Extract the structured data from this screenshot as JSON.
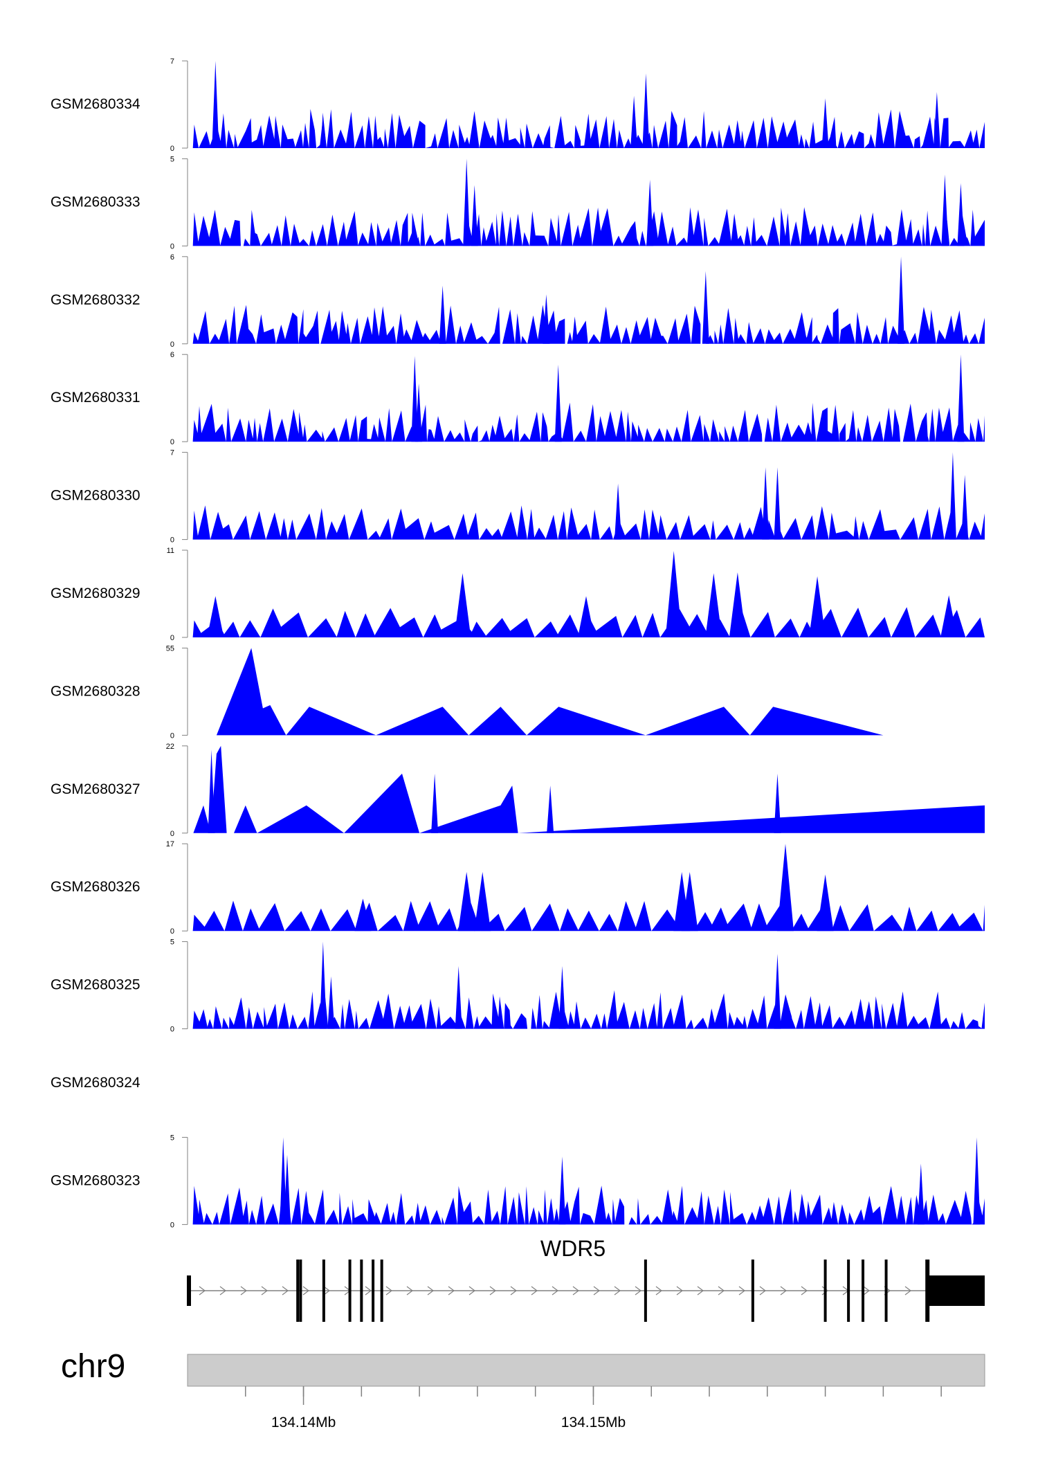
{
  "chart_data": {
    "type": "area",
    "title": "",
    "chromosome": "chr9",
    "gene": {
      "name": "WDR5",
      "strand": "+",
      "exon_positions": [
        134135900,
        134139800,
        134139900,
        134140700,
        134141600,
        134142000,
        134142400,
        134142700,
        134151800,
        134155500,
        134158000,
        134158800,
        134159300,
        134160100,
        134161500
      ],
      "utr_3prime": [
        134161500,
        134163500
      ]
    },
    "x_range": [
      134136000,
      134163500
    ],
    "x_axis": {
      "tick_labels": [
        "134.14Mb",
        "134.15Mb"
      ],
      "tick_label_values": [
        134140000,
        134150000
      ],
      "minor_tick_values": [
        134138000,
        134140000,
        134142000,
        134144000,
        134146000,
        134148000,
        134150000,
        134152000,
        134154000,
        134156000,
        134158000,
        134160000,
        134162000
      ]
    },
    "fill_color": "#0000ff",
    "tracks": [
      {
        "label": "GSM2680334",
        "ylim": [
          0,
          7
        ],
        "tick_labels": [
          "0",
          "7"
        ],
        "style": "dense",
        "seed": 334,
        "peaks": [
          [
            0.035,
            7
          ],
          [
            0.17,
            2.5
          ],
          [
            0.56,
            4.2
          ],
          [
            0.575,
            6.0
          ],
          [
            0.8,
            4.0
          ],
          [
            0.94,
            4.5
          ]
        ]
      },
      {
        "label": "GSM2680333",
        "ylim": [
          0,
          5
        ],
        "tick_labels": [
          "0",
          "5"
        ],
        "style": "dense",
        "seed": 333,
        "peaks": [
          [
            0.35,
            5
          ],
          [
            0.36,
            3.5
          ],
          [
            0.58,
            3.8
          ],
          [
            0.95,
            4.1
          ],
          [
            0.97,
            3.6
          ]
        ]
      },
      {
        "label": "GSM2680332",
        "ylim": [
          0,
          6
        ],
        "tick_labels": [
          "0",
          "6"
        ],
        "style": "dense",
        "seed": 332,
        "peaks": [
          [
            0.32,
            4.0
          ],
          [
            0.45,
            3.4
          ],
          [
            0.65,
            5.0
          ],
          [
            0.895,
            6.0
          ]
        ]
      },
      {
        "label": "GSM2680331",
        "ylim": [
          0,
          6
        ],
        "tick_labels": [
          "0",
          "6"
        ],
        "style": "dense",
        "seed": 331,
        "peaks": [
          [
            0.285,
            5.9
          ],
          [
            0.29,
            4.0
          ],
          [
            0.465,
            5.3
          ],
          [
            0.97,
            6.0
          ]
        ]
      },
      {
        "label": "GSM2680330",
        "ylim": [
          0,
          7
        ],
        "tick_labels": [
          "0",
          "7"
        ],
        "style": "medium",
        "seed": 330,
        "peaks": [
          [
            0.54,
            4.5
          ],
          [
            0.725,
            5.8
          ],
          [
            0.74,
            5.8
          ],
          [
            0.96,
            7.0
          ],
          [
            0.975,
            5.2
          ]
        ]
      },
      {
        "label": "GSM2680329",
        "ylim": [
          0,
          11
        ],
        "tick_labels": [
          "0",
          "11"
        ],
        "style": "sparse",
        "seed": 329,
        "peaks": [
          [
            0.035,
            5.2
          ],
          [
            0.345,
            8.1
          ],
          [
            0.5,
            5.2
          ],
          [
            0.61,
            10.9
          ],
          [
            0.66,
            8.1
          ],
          [
            0.69,
            8.2
          ],
          [
            0.79,
            7.7
          ],
          [
            0.955,
            5.3
          ]
        ]
      },
      {
        "label": "GSM2680328",
        "ylim": [
          0,
          55
        ],
        "tick_labels": [
          "0",
          "55"
        ],
        "style": "points",
        "points": [
          [
            134137000,
            0
          ],
          [
            134138200,
            55
          ],
          [
            134138600,
            17
          ],
          [
            134138850,
            19
          ],
          [
            134139400,
            0
          ],
          [
            134140200,
            18
          ],
          [
            134142500,
            0
          ],
          [
            134144800,
            18
          ],
          [
            134145700,
            0
          ],
          [
            134146800,
            18
          ],
          [
            134147700,
            0
          ],
          [
            134148800,
            18
          ],
          [
            134151800,
            0
          ],
          [
            134154500,
            18
          ],
          [
            134155400,
            0
          ],
          [
            134156200,
            18
          ],
          [
            134160000,
            0
          ]
        ]
      },
      {
        "label": "GSM2680327",
        "ylim": [
          0,
          22
        ],
        "tick_labels": [
          "0",
          "22"
        ],
        "style": "points",
        "points": [
          [
            134136200,
            0
          ],
          [
            134136550,
            7
          ],
          [
            134136800,
            0
          ],
          [
            134137000,
            20
          ],
          [
            134137150,
            22
          ],
          [
            134137350,
            0
          ],
          [
            134137600,
            0
          ],
          [
            134138000,
            7
          ],
          [
            134138400,
            0
          ],
          [
            134140100,
            7
          ],
          [
            134141400,
            0
          ],
          [
            134143400,
            15
          ],
          [
            134144000,
            0
          ],
          [
            134146800,
            7
          ],
          [
            134147200,
            12
          ],
          [
            134147400,
            0
          ],
          [
            134163500,
            7
          ]
        ],
        "spikes": [
          [
            0.03,
            21
          ],
          [
            0.31,
            15
          ],
          [
            0.455,
            12
          ],
          [
            0.74,
            15
          ]
        ]
      },
      {
        "label": "GSM2680326",
        "ylim": [
          0,
          17
        ],
        "tick_labels": [
          "0",
          "17"
        ],
        "style": "sparse",
        "seed": 326,
        "peaks": [
          [
            0.22,
            6.3
          ],
          [
            0.35,
            11.5
          ],
          [
            0.37,
            11.5
          ],
          [
            0.62,
            11.5
          ],
          [
            0.63,
            11.5
          ],
          [
            0.75,
            17.0
          ],
          [
            0.8,
            11.0
          ]
        ]
      },
      {
        "label": "GSM2680325",
        "ylim": [
          0,
          5
        ],
        "tick_labels": [
          "0",
          "5"
        ],
        "style": "dense",
        "seed": 325,
        "peaks": [
          [
            0.17,
            5.0
          ],
          [
            0.18,
            3.0
          ],
          [
            0.34,
            3.6
          ],
          [
            0.47,
            3.6
          ],
          [
            0.74,
            4.3
          ]
        ]
      },
      {
        "label": "GSM2680324",
        "ylim": null,
        "tick_labels": [],
        "style": "empty"
      },
      {
        "label": "GSM2680323",
        "ylim": [
          0,
          5
        ],
        "tick_labels": [
          "0",
          "5"
        ],
        "style": "dense",
        "seed": 323,
        "peaks": [
          [
            0.12,
            5.0
          ],
          [
            0.125,
            4.0
          ],
          [
            0.47,
            3.9
          ],
          [
            0.92,
            3.5
          ],
          [
            0.99,
            5.0
          ]
        ]
      }
    ]
  }
}
